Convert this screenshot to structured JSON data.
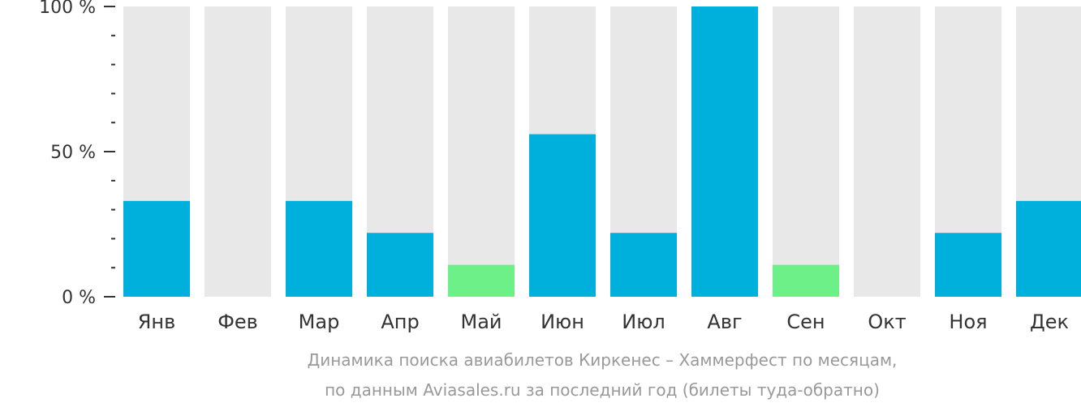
{
  "chart_data": {
    "type": "bar",
    "categories": [
      "Янв",
      "Фев",
      "Мар",
      "Апр",
      "Май",
      "Июн",
      "Июл",
      "Авг",
      "Сен",
      "Окт",
      "Ноя",
      "Дек"
    ],
    "values": [
      33,
      0,
      33,
      22,
      11,
      56,
      22,
      100,
      11,
      0,
      22,
      33
    ],
    "highlight": [
      false,
      false,
      false,
      false,
      true,
      false,
      false,
      false,
      true,
      false,
      false,
      false
    ],
    "ylim": [
      0,
      100
    ],
    "yticks": [
      {
        "value": 100,
        "label": "100 %"
      },
      {
        "value": 50,
        "label": "50 %"
      },
      {
        "value": 0,
        "label": "0 %"
      }
    ],
    "minor_ticks": [
      10,
      20,
      30,
      40,
      60,
      70,
      80,
      90
    ],
    "colors": {
      "bar": "#00b0dc",
      "bar_highlight": "#6df088",
      "background_bar": "#e8e8e8",
      "axis": "#333333",
      "text": "#333333",
      "caption": "#999999"
    },
    "caption_lines": [
      "Динамика поиска авиабилетов Киркенес – Хаммерфест по месяцам,",
      "по данным Aviasales.ru за последний год (билеты туда-обратно)"
    ]
  }
}
